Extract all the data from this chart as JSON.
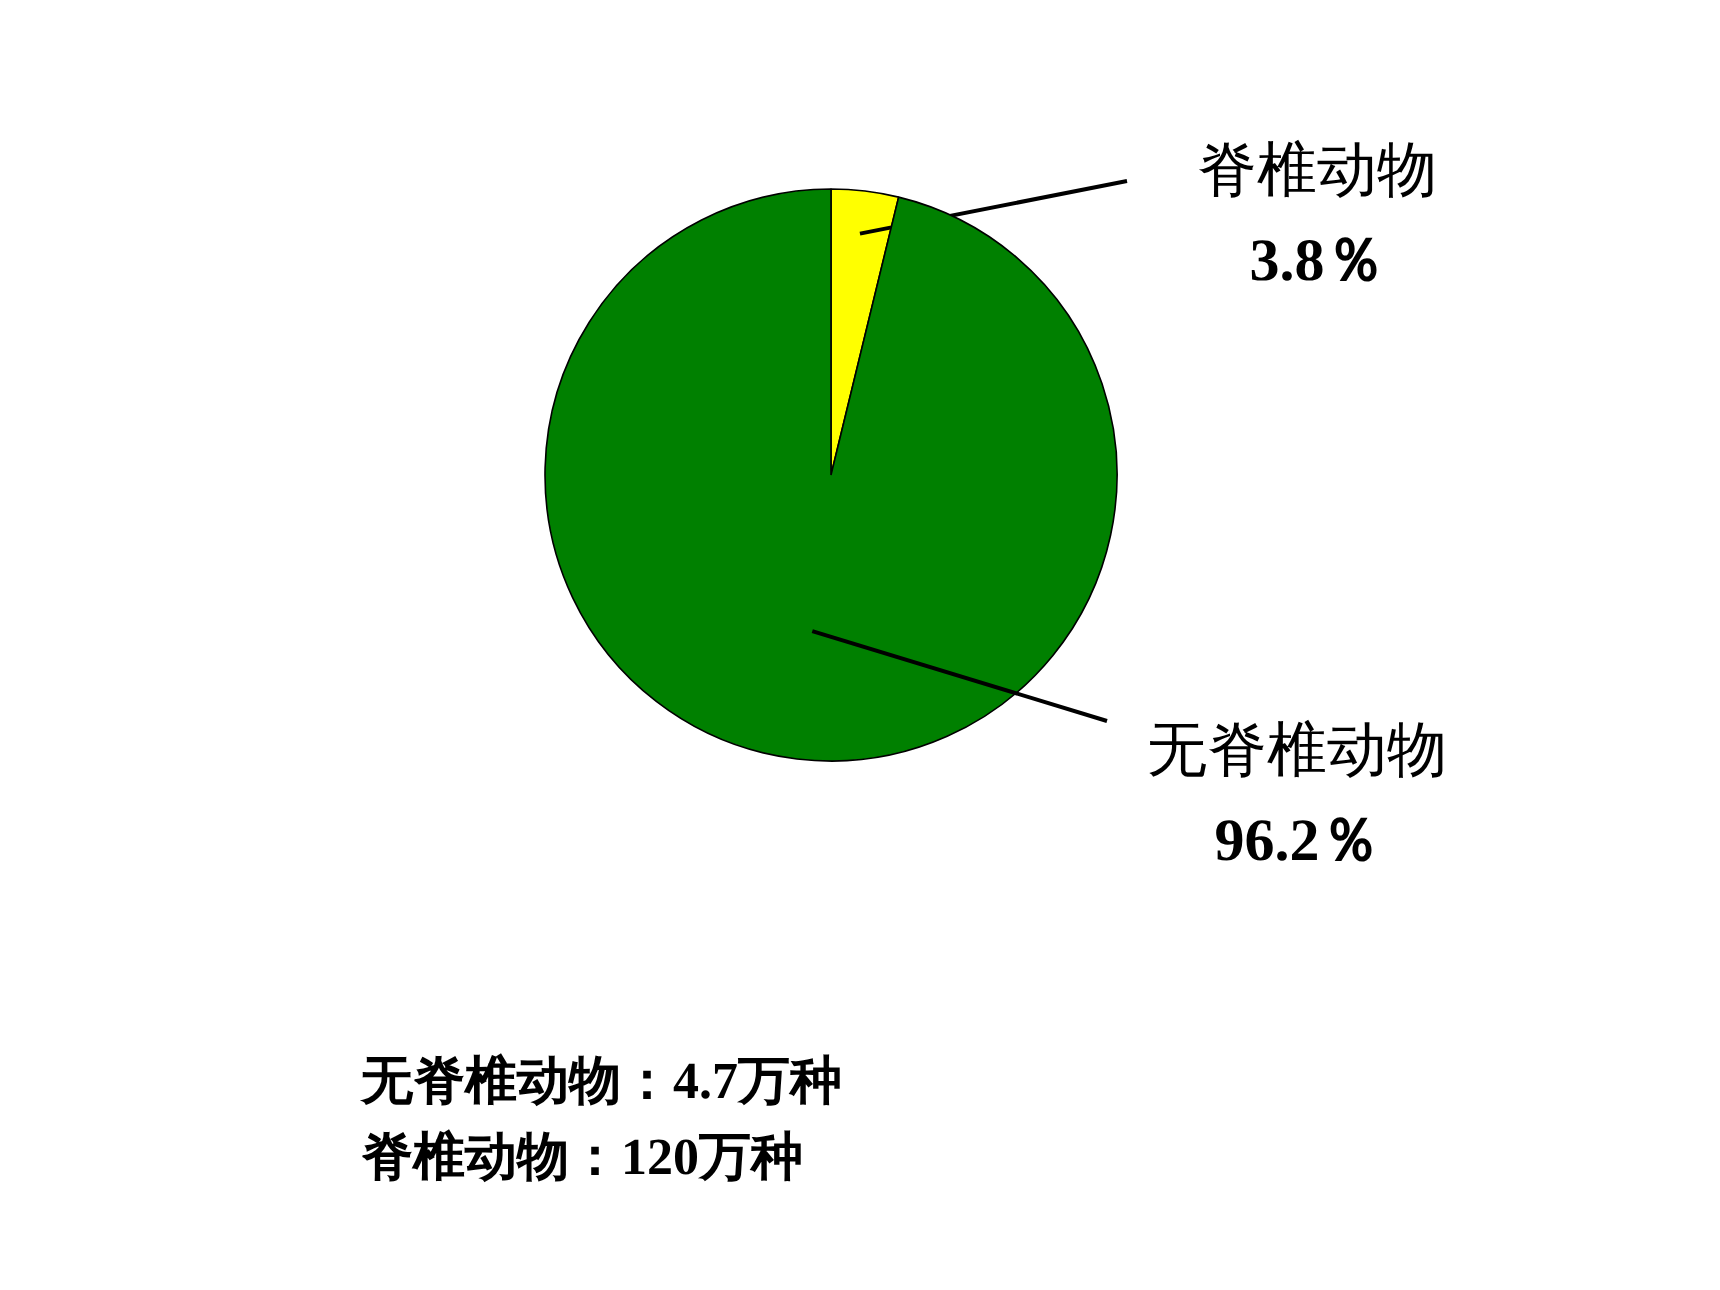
{
  "chart_data": {
    "type": "pie",
    "categories": [
      "脊椎动物",
      "无脊椎动物"
    ],
    "values": [
      3.8,
      96.2
    ],
    "colors": [
      "#ffff00",
      "#008000"
    ],
    "value_labels": [
      "3.8％",
      "96.2％"
    ],
    "annotations": [
      "无脊椎动物：4.7万种",
      "脊椎动物：120万种"
    ]
  }
}
